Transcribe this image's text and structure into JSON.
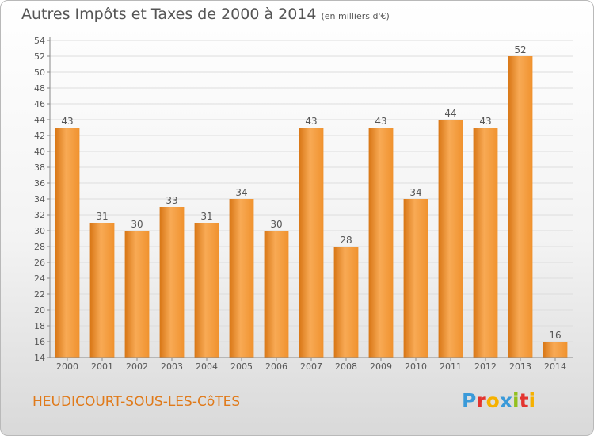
{
  "title": "Autres Impôts et Taxes de 2000 à 2014",
  "title_unit": "(en milliers d'€)",
  "commune": "HEUDICOURT-SOUS-LES-CôTES",
  "logo": {
    "letters": [
      "P",
      "r",
      "o",
      "x",
      "i",
      "t",
      "i"
    ],
    "colors": [
      "#3a9ad9",
      "#e3342f",
      "#f6b100",
      "#3a9ad9",
      "#93c01f",
      "#e3342f",
      "#f6b100"
    ]
  },
  "colors": {
    "bar": "#f0922e",
    "bar_light": "#f8aa55",
    "bar_dark": "#d87615",
    "text": "#555555",
    "grid": "#dddddd"
  },
  "chart_data": {
    "type": "bar",
    "categories": [
      "2000",
      "2001",
      "2002",
      "2003",
      "2004",
      "2005",
      "2006",
      "2007",
      "2008",
      "2009",
      "2010",
      "2011",
      "2012",
      "2013",
      "2014"
    ],
    "values": [
      43,
      31,
      30,
      33,
      31,
      34,
      30,
      43,
      28,
      43,
      34,
      44,
      43,
      52,
      16
    ],
    "title": "Autres Impôts et Taxes de 2000 à 2014",
    "xlabel": "",
    "ylabel": "",
    "ylim": [
      14,
      54
    ],
    "yticks": [
      14,
      16,
      18,
      20,
      22,
      24,
      26,
      28,
      30,
      32,
      34,
      36,
      38,
      40,
      42,
      44,
      46,
      48,
      50,
      52,
      54
    ],
    "grid": true,
    "data_labels": true
  }
}
